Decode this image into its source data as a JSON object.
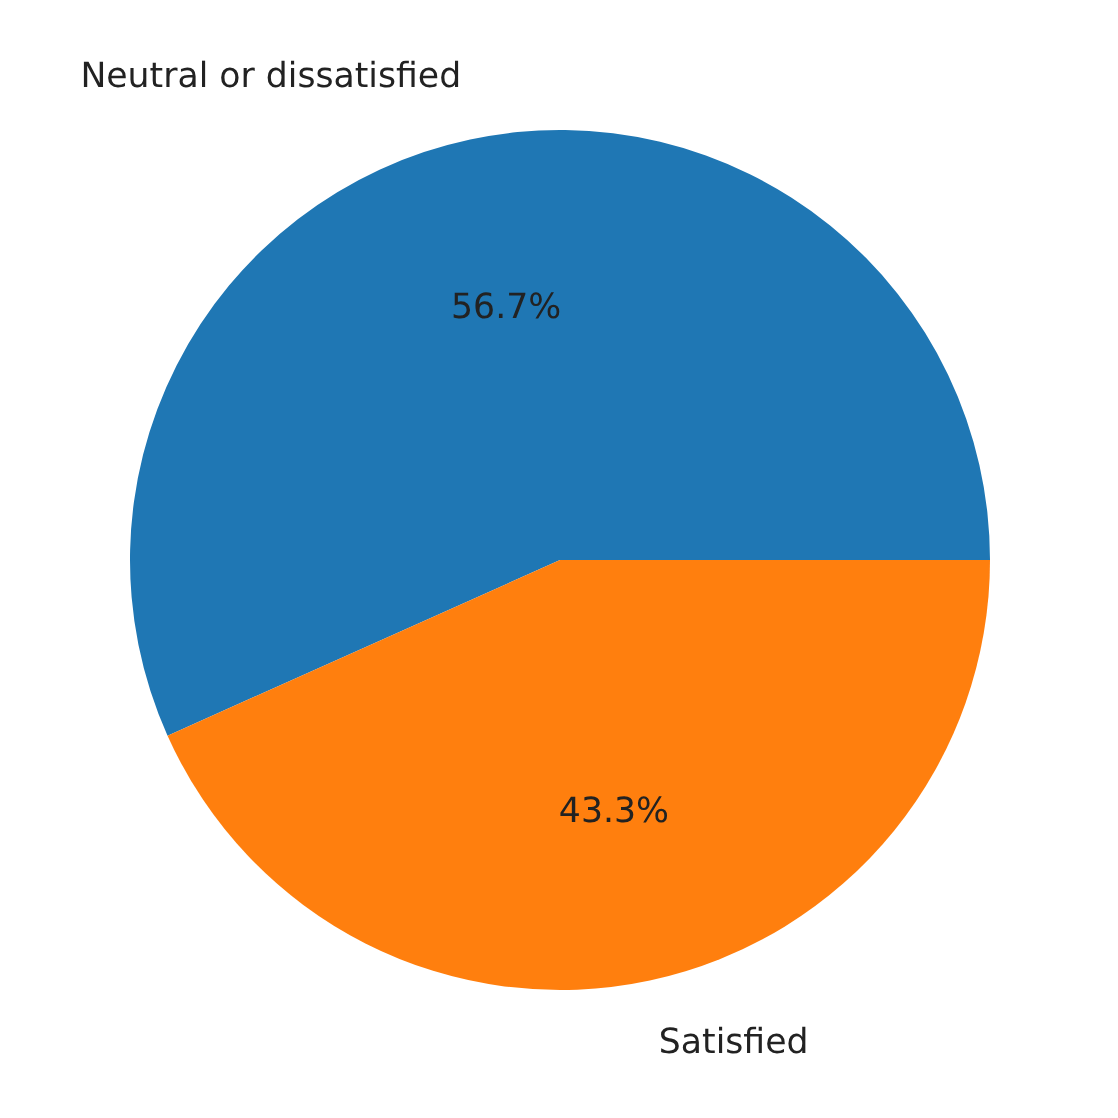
{
  "chart_data": {
    "type": "pie",
    "categories": [
      "Neutral or dissatisfied",
      "Satisfied"
    ],
    "values": [
      56.7,
      43.3
    ],
    "colors": [
      "#1f77b4",
      "#ff7f0e"
    ],
    "value_labels": [
      "56.7%",
      "43.3%"
    ]
  }
}
